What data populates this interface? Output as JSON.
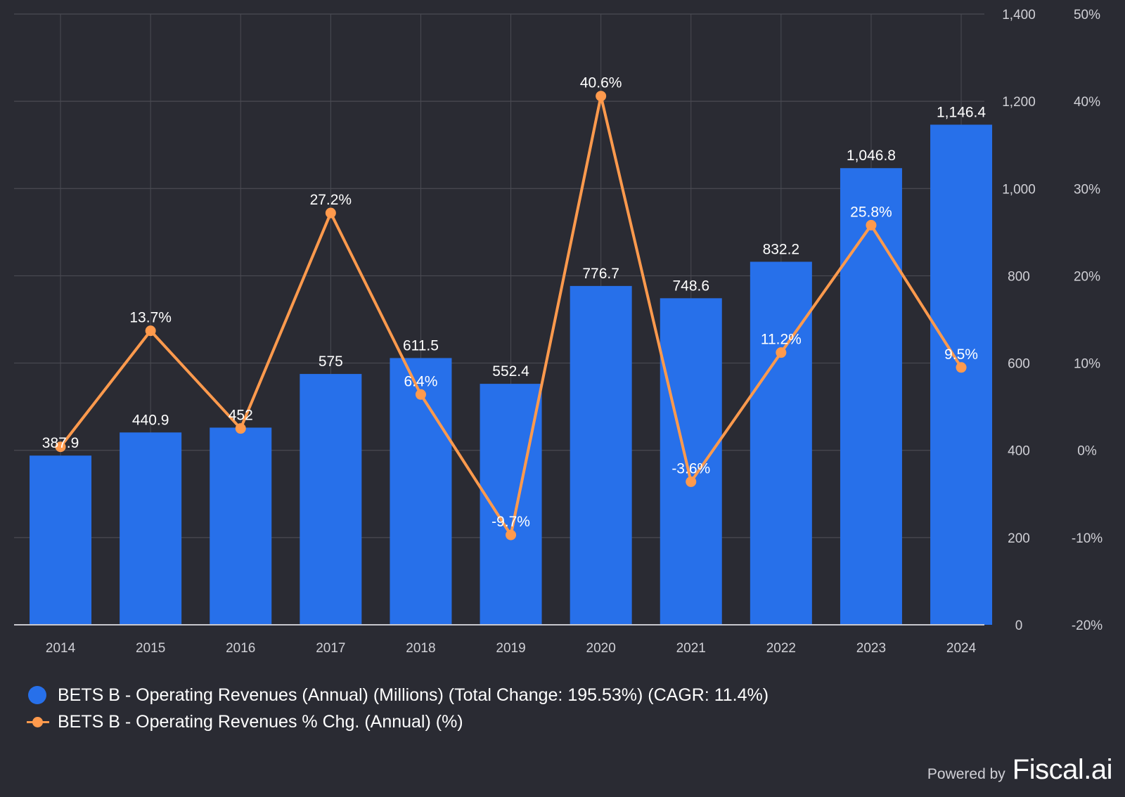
{
  "chart_data": {
    "type": "bar",
    "categories": [
      "2014",
      "2015",
      "2016",
      "2017",
      "2018",
      "2019",
      "2020",
      "2021",
      "2022",
      "2023",
      "2024"
    ],
    "series": [
      {
        "name": "BETS B - Operating Revenues (Annual) (Millions) (Total Change: 195.53%) (CAGR: 11.4%)",
        "type": "bar",
        "axis": "left",
        "color": "#2770ea",
        "values": [
          387.9,
          440.9,
          452,
          575,
          611.5,
          552.4,
          776.7,
          748.6,
          832.2,
          1046.8,
          1146.4
        ],
        "labels": [
          "387.9",
          "440.9",
          "452",
          "575",
          "611.5",
          "552.4",
          "776.7",
          "748.6",
          "832.2",
          "1,046.8",
          "1,146.4"
        ]
      },
      {
        "name": "BETS B - Operating Revenues % Chg. (Annual) (%)",
        "type": "line",
        "axis": "right",
        "color": "#ff9a4d",
        "values": [
          null,
          13.7,
          2.5,
          27.2,
          6.4,
          -9.7,
          40.6,
          -3.6,
          11.2,
          25.8,
          9.5
        ],
        "labels": [
          "",
          "13.7%",
          "",
          "27.2%",
          "6.4%",
          "-9.7%",
          "40.6%",
          "-3.6%",
          "11.2%",
          "25.8%",
          "9.5%"
        ]
      }
    ],
    "line_first_point": 0.4,
    "y_left": {
      "min": 0,
      "max": 1400,
      "ticks": [
        0,
        200,
        400,
        600,
        800,
        1000,
        1200,
        1400
      ],
      "tick_labels": [
        "0",
        "200",
        "400",
        "600",
        "800",
        "1,000",
        "1,200",
        "1,400"
      ]
    },
    "y_right": {
      "min": -20,
      "max": 50,
      "ticks": [
        -20,
        -10,
        0,
        10,
        20,
        30,
        40,
        50
      ],
      "tick_labels": [
        "-20%",
        "-10%",
        "0%",
        "10%",
        "20%",
        "30%",
        "40%",
        "50%"
      ]
    },
    "grid": true,
    "legend_position": "bottom-left"
  },
  "legend": {
    "bar_label": "BETS B - Operating Revenues (Annual) (Millions) (Total Change: 195.53%) (CAGR: 11.4%)",
    "line_label": "BETS B - Operating Revenues % Chg. (Annual) (%)"
  },
  "footer": {
    "powered_by": "Powered by",
    "brand": "Fiscal.ai"
  },
  "colors": {
    "background": "#2a2b33",
    "grid": "#4a4b53",
    "axis_text": "#d0d0d6",
    "bar": "#2770ea",
    "line": "#ff9a4d"
  }
}
